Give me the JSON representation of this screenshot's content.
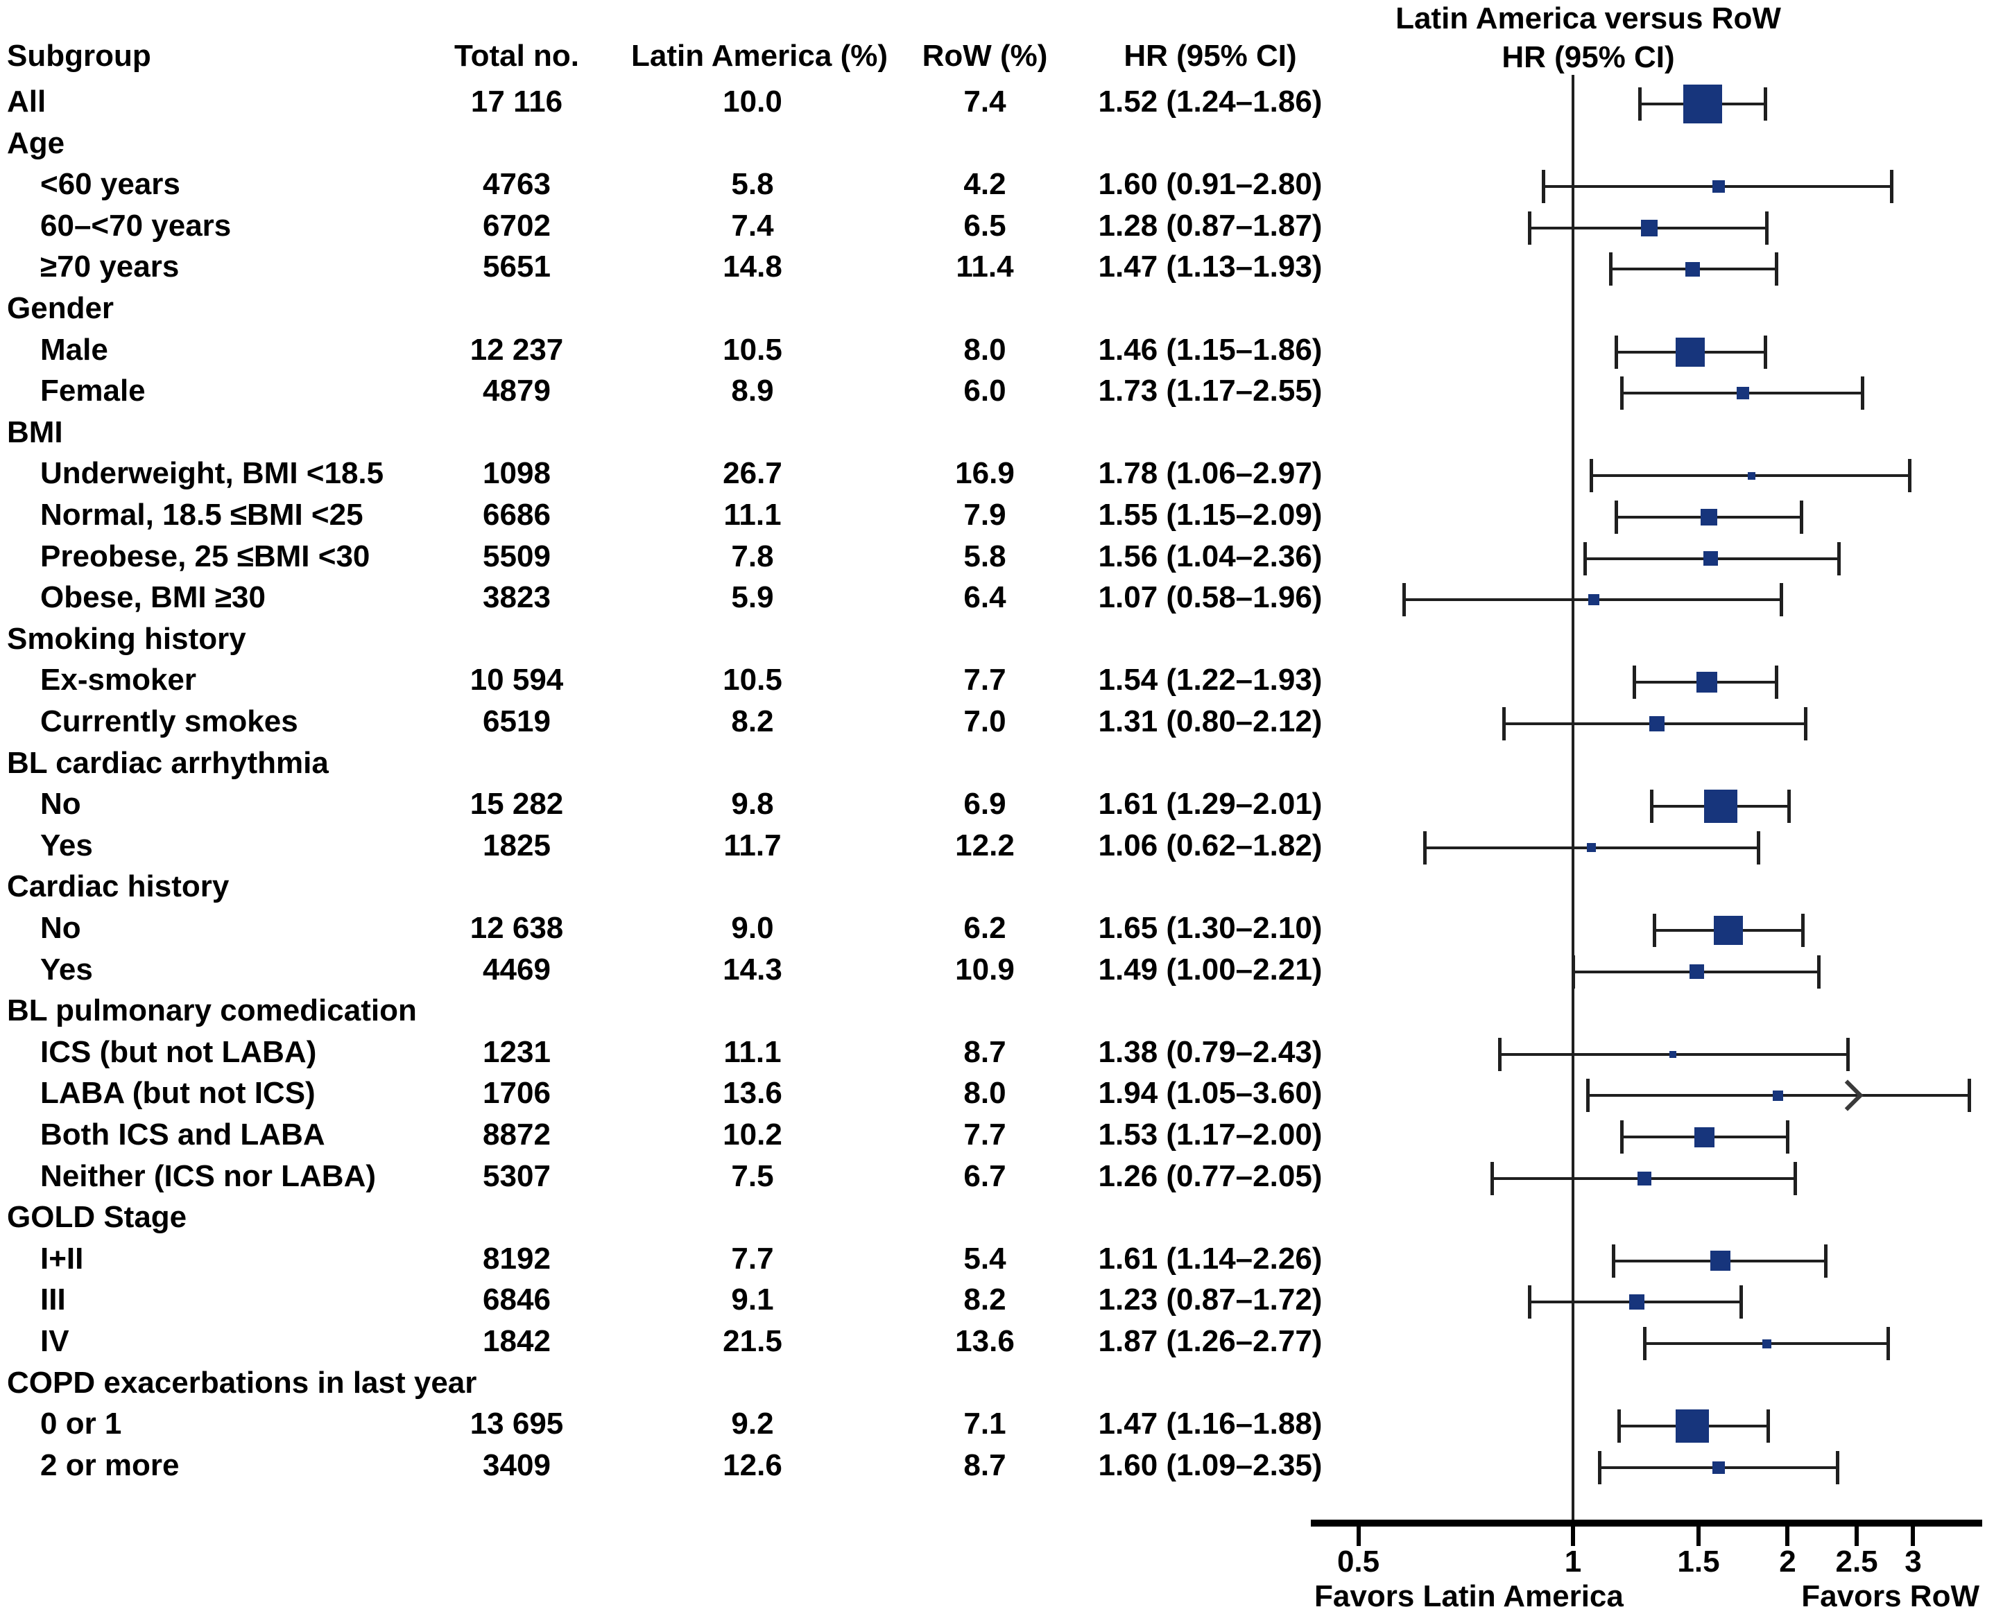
{
  "figure": {
    "title_line1": "Latin America versus RoW",
    "title_line2": "HR (95% CI)",
    "column_headers": {
      "subgroup": "Subgroup",
      "total": "Total no.",
      "latam": "Latin America (%)",
      "row": "RoW (%)",
      "hr": "HR (95% CI)"
    },
    "favors_left": "Favors Latin America",
    "favors_right": "Favors RoW"
  },
  "colors": {
    "marker": "#17357c",
    "ci_line": "#1f1f1f",
    "axis": "#000000",
    "text": "#000000"
  },
  "chart_data": {
    "type": "forest",
    "title": "Latin America versus RoW",
    "subtitle": "HR (95% CI)",
    "x_scale": "log",
    "x_ticks": [
      0.5,
      1,
      1.5,
      2,
      2.5,
      3
    ],
    "x_tick_labels": [
      "0.5",
      "1",
      "1.5",
      "2",
      "2.5",
      "3"
    ],
    "reference_line": 1,
    "x_range_displayed": [
      0.43,
      3.75
    ],
    "favors": {
      "left": "Favors Latin America",
      "right": "Favors RoW"
    },
    "rows": [
      {
        "kind": "data",
        "label": "All",
        "indent": 0,
        "total": "17 116",
        "latam_pct": "10.0",
        "row_pct": "7.4",
        "hr_text": "1.52 (1.24–1.86)",
        "hr": 1.52,
        "ci_low": 1.24,
        "ci_high": 1.86,
        "marker_size": 56
      },
      {
        "kind": "section",
        "label": "Age"
      },
      {
        "kind": "data",
        "label": "<60 years",
        "indent": 1,
        "total": "4763",
        "latam_pct": "5.8",
        "row_pct": "4.2",
        "hr_text": "1.60 (0.91–2.80)",
        "hr": 1.6,
        "ci_low": 0.91,
        "ci_high": 2.8,
        "marker_size": 18
      },
      {
        "kind": "data",
        "label": "60–<70 years",
        "indent": 1,
        "total": "6702",
        "latam_pct": "7.4",
        "row_pct": "6.5",
        "hr_text": "1.28 (0.87–1.87)",
        "hr": 1.28,
        "ci_low": 0.87,
        "ci_high": 1.87,
        "marker_size": 24
      },
      {
        "kind": "data",
        "label": "≥70 years",
        "indent": 1,
        "total": "5651",
        "latam_pct": "14.8",
        "row_pct": "11.4",
        "hr_text": "1.47 (1.13–1.93)",
        "hr": 1.47,
        "ci_low": 1.13,
        "ci_high": 1.93,
        "marker_size": 21
      },
      {
        "kind": "section",
        "label": "Gender"
      },
      {
        "kind": "data",
        "label": "Male",
        "indent": 1,
        "total": "12 237",
        "latam_pct": "10.5",
        "row_pct": "8.0",
        "hr_text": "1.46 (1.15–1.86)",
        "hr": 1.46,
        "ci_low": 1.15,
        "ci_high": 1.86,
        "marker_size": 42
      },
      {
        "kind": "data",
        "label": "Female",
        "indent": 1,
        "total": "4879",
        "latam_pct": "8.9",
        "row_pct": "6.0",
        "hr_text": "1.73 (1.17–2.55)",
        "hr": 1.73,
        "ci_low": 1.17,
        "ci_high": 2.55,
        "marker_size": 18
      },
      {
        "kind": "section",
        "label": "BMI"
      },
      {
        "kind": "data",
        "label": "Underweight, BMI <18.5",
        "indent": 1,
        "total": "1098",
        "latam_pct": "26.7",
        "row_pct": "16.9",
        "hr_text": "1.78 (1.06–2.97)",
        "hr": 1.78,
        "ci_low": 1.06,
        "ci_high": 2.97,
        "marker_size": 11
      },
      {
        "kind": "data",
        "label": "Normal, 18.5 ≤BMI <25",
        "indent": 1,
        "total": "6686",
        "latam_pct": "11.1",
        "row_pct": "7.9",
        "hr_text": "1.55 (1.15–2.09)",
        "hr": 1.55,
        "ci_low": 1.15,
        "ci_high": 2.09,
        "marker_size": 24
      },
      {
        "kind": "data",
        "label": "Preobese, 25 ≤BMI <30",
        "indent": 1,
        "total": "5509",
        "latam_pct": "7.8",
        "row_pct": "5.8",
        "hr_text": "1.56 (1.04–2.36)",
        "hr": 1.56,
        "ci_low": 1.04,
        "ci_high": 2.36,
        "marker_size": 21
      },
      {
        "kind": "data",
        "label": "Obese, BMI ≥30",
        "indent": 1,
        "total": "3823",
        "latam_pct": "5.9",
        "row_pct": "6.4",
        "hr_text": "1.07 (0.58–1.96)",
        "hr": 1.07,
        "ci_low": 0.58,
        "ci_high": 1.96,
        "marker_size": 16
      },
      {
        "kind": "section",
        "label": "Smoking history"
      },
      {
        "kind": "data",
        "label": "Ex-smoker",
        "indent": 1,
        "total": "10 594",
        "latam_pct": "10.5",
        "row_pct": "7.7",
        "hr_text": "1.54 (1.22–1.93)",
        "hr": 1.54,
        "ci_low": 1.22,
        "ci_high": 1.93,
        "marker_size": 30
      },
      {
        "kind": "data",
        "label": "Currently smokes",
        "indent": 1,
        "total": "6519",
        "latam_pct": "8.2",
        "row_pct": "7.0",
        "hr_text": "1.31 (0.80–2.12)",
        "hr": 1.31,
        "ci_low": 0.8,
        "ci_high": 2.12,
        "marker_size": 22
      },
      {
        "kind": "section",
        "label": "BL cardiac arrhythmia"
      },
      {
        "kind": "data",
        "label": "No",
        "indent": 1,
        "total": "15 282",
        "latam_pct": "9.8",
        "row_pct": "6.9",
        "hr_text": "1.61 (1.29–2.01)",
        "hr": 1.61,
        "ci_low": 1.29,
        "ci_high": 2.01,
        "marker_size": 48
      },
      {
        "kind": "data",
        "label": "Yes",
        "indent": 1,
        "total": "1825",
        "latam_pct": "11.7",
        "row_pct": "12.2",
        "hr_text": "1.06 (0.62–1.82)",
        "hr": 1.06,
        "ci_low": 0.62,
        "ci_high": 1.82,
        "marker_size": 13
      },
      {
        "kind": "section",
        "label": "Cardiac history"
      },
      {
        "kind": "data",
        "label": "No",
        "indent": 1,
        "total": "12 638",
        "latam_pct": "9.0",
        "row_pct": "6.2",
        "hr_text": "1.65 (1.30–2.10)",
        "hr": 1.65,
        "ci_low": 1.3,
        "ci_high": 2.1,
        "marker_size": 42
      },
      {
        "kind": "data",
        "label": "Yes",
        "indent": 1,
        "total": "4469",
        "latam_pct": "14.3",
        "row_pct": "10.9",
        "hr_text": "1.49 (1.00–2.21)",
        "hr": 1.49,
        "ci_low": 1.0,
        "ci_high": 2.21,
        "marker_size": 21
      },
      {
        "kind": "section",
        "label": "BL pulmonary comedication"
      },
      {
        "kind": "data",
        "label": "ICS (but not LABA)",
        "indent": 1,
        "total": "1231",
        "latam_pct": "11.1",
        "row_pct": "8.7",
        "hr_text": "1.38 (0.79–2.43)",
        "hr": 1.38,
        "ci_low": 0.79,
        "ci_high": 2.43,
        "marker_size": 10
      },
      {
        "kind": "data",
        "label": "LABA (but not ICS)",
        "indent": 1,
        "total": "1706",
        "latam_pct": "13.6",
        "row_pct": "8.0",
        "hr_text": "1.94 (1.05–3.60)",
        "hr": 1.94,
        "ci_low": 1.05,
        "ci_high": 3.6,
        "marker_size": 15,
        "arrow": true,
        "arrow_at": 2.45
      },
      {
        "kind": "data",
        "label": "Both ICS and LABA",
        "indent": 1,
        "total": "8872",
        "latam_pct": "10.2",
        "row_pct": "7.7",
        "hr_text": "1.53 (1.17–2.00)",
        "hr": 1.53,
        "ci_low": 1.17,
        "ci_high": 2.0,
        "marker_size": 29
      },
      {
        "kind": "data",
        "label": "Neither (ICS nor LABA)",
        "indent": 1,
        "total": "5307",
        "latam_pct": "7.5",
        "row_pct": "6.7",
        "hr_text": "1.26 (0.77–2.05)",
        "hr": 1.26,
        "ci_low": 0.77,
        "ci_high": 2.05,
        "marker_size": 20
      },
      {
        "kind": "section",
        "label": "GOLD Stage"
      },
      {
        "kind": "data",
        "label": "I+II",
        "indent": 1,
        "total": "8192",
        "latam_pct": "7.7",
        "row_pct": "5.4",
        "hr_text": "1.61 (1.14–2.26)",
        "hr": 1.61,
        "ci_low": 1.14,
        "ci_high": 2.26,
        "marker_size": 29
      },
      {
        "kind": "data",
        "label": "III",
        "indent": 1,
        "total": "6846",
        "latam_pct": "9.1",
        "row_pct": "8.2",
        "hr_text": "1.23 (0.87–1.72)",
        "hr": 1.23,
        "ci_low": 0.87,
        "ci_high": 1.72,
        "marker_size": 22
      },
      {
        "kind": "data",
        "label": "IV",
        "indent": 1,
        "total": "1842",
        "latam_pct": "21.5",
        "row_pct": "13.6",
        "hr_text": "1.87 (1.26–2.77)",
        "hr": 1.87,
        "ci_low": 1.26,
        "ci_high": 2.77,
        "marker_size": 13
      },
      {
        "kind": "section",
        "label": "COPD exacerbations in last year"
      },
      {
        "kind": "data",
        "label": "0 or 1",
        "indent": 1,
        "total": "13 695",
        "latam_pct": "9.2",
        "row_pct": "7.1",
        "hr_text": "1.47 (1.16–1.88)",
        "hr": 1.47,
        "ci_low": 1.16,
        "ci_high": 1.88,
        "marker_size": 48
      },
      {
        "kind": "data",
        "label": "2 or more",
        "indent": 1,
        "total": "3409",
        "latam_pct": "12.6",
        "row_pct": "8.7",
        "hr_text": "1.60 (1.09–2.35)",
        "hr": 1.6,
        "ci_low": 1.09,
        "ci_high": 2.35,
        "marker_size": 18
      }
    ]
  }
}
